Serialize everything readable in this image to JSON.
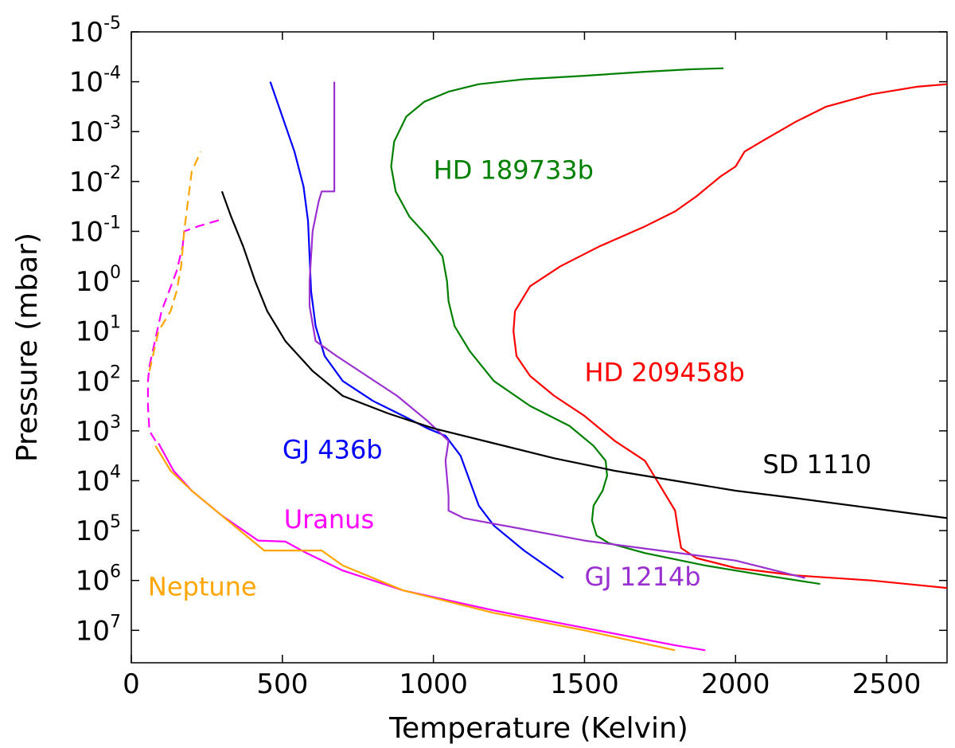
{
  "chart_data": {
    "type": "line",
    "xlabel": "Temperature (Kelvin)",
    "ylabel": "Pressure (mbar)",
    "xlim": [
      0,
      2700
    ],
    "ylim_log10": [
      -5,
      7.65
    ],
    "y_inverted": true,
    "grid": false,
    "x_ticks": [
      {
        "value": 0,
        "label": "0"
      },
      {
        "value": 500,
        "label": "500"
      },
      {
        "value": 1000,
        "label": "1000"
      },
      {
        "value": 1500,
        "label": "1500"
      },
      {
        "value": 2000,
        "label": "2000"
      },
      {
        "value": 2500,
        "label": "2500"
      }
    ],
    "y_ticks": [
      {
        "exp": -5,
        "base": "10",
        "sup": "-5"
      },
      {
        "exp": -4,
        "base": "10",
        "sup": "-4"
      },
      {
        "exp": -3,
        "base": "10",
        "sup": "-3"
      },
      {
        "exp": -2,
        "base": "10",
        "sup": "-2"
      },
      {
        "exp": -1,
        "base": "10",
        "sup": "-1"
      },
      {
        "exp": 0,
        "base": "10",
        "sup": "0"
      },
      {
        "exp": 1,
        "base": "10",
        "sup": "1"
      },
      {
        "exp": 2,
        "base": "10",
        "sup": "2"
      },
      {
        "exp": 3,
        "base": "10",
        "sup": "3"
      },
      {
        "exp": 4,
        "base": "10",
        "sup": "4"
      },
      {
        "exp": 5,
        "base": "10",
        "sup": "5"
      },
      {
        "exp": 6,
        "base": "10",
        "sup": "6"
      },
      {
        "exp": 7,
        "base": "10",
        "sup": "7"
      }
    ],
    "series": [
      {
        "id": "hd189733b",
        "name": "HD 189733b",
        "color": "#008000",
        "label_at": {
          "t": 1000,
          "logp": -2.05
        },
        "points": [
          [
            1960,
            -4.27
          ],
          [
            1850,
            -4.25
          ],
          [
            1700,
            -4.2
          ],
          [
            1500,
            -4.12
          ],
          [
            1300,
            -4.05
          ],
          [
            1150,
            -3.95
          ],
          [
            1050,
            -3.8
          ],
          [
            970,
            -3.6
          ],
          [
            910,
            -3.3
          ],
          [
            870,
            -2.8
          ],
          [
            860,
            -2.3
          ],
          [
            875,
            -1.8
          ],
          [
            920,
            -1.3
          ],
          [
            980,
            -0.9
          ],
          [
            1030,
            -0.5
          ],
          [
            1045,
            0
          ],
          [
            1050,
            0.4
          ],
          [
            1070,
            0.9
          ],
          [
            1120,
            1.4
          ],
          [
            1200,
            2.0
          ],
          [
            1320,
            2.5
          ],
          [
            1450,
            2.9
          ],
          [
            1530,
            3.3
          ],
          [
            1570,
            3.6
          ],
          [
            1575,
            3.9
          ],
          [
            1560,
            4.2
          ],
          [
            1530,
            4.5
          ],
          [
            1525,
            4.8
          ],
          [
            1540,
            5.1
          ],
          [
            1580,
            5.25
          ],
          [
            1700,
            5.45
          ],
          [
            1900,
            5.7
          ],
          [
            2100,
            5.9
          ],
          [
            2280,
            6.07
          ]
        ]
      },
      {
        "id": "hd209458b",
        "name": "HD 209458b",
        "color": "#ff0000",
        "label_at": {
          "t": 1500,
          "logp": 2.0
        },
        "points": [
          [
            2700,
            -3.95
          ],
          [
            2600,
            -3.9
          ],
          [
            2450,
            -3.75
          ],
          [
            2300,
            -3.5
          ],
          [
            2200,
            -3.2
          ],
          [
            2100,
            -2.85
          ],
          [
            2030,
            -2.6
          ],
          [
            2000,
            -2.3
          ],
          [
            1950,
            -2.1
          ],
          [
            1870,
            -1.7
          ],
          [
            1800,
            -1.4
          ],
          [
            1700,
            -1.1
          ],
          [
            1550,
            -0.7
          ],
          [
            1420,
            -0.3
          ],
          [
            1320,
            0.1
          ],
          [
            1270,
            0.6
          ],
          [
            1265,
            1.0
          ],
          [
            1275,
            1.5
          ],
          [
            1320,
            1.9
          ],
          [
            1400,
            2.3
          ],
          [
            1500,
            2.7
          ],
          [
            1600,
            3.2
          ],
          [
            1700,
            3.6
          ],
          [
            1750,
            4.1
          ],
          [
            1800,
            4.6
          ],
          [
            1810,
            5.0
          ],
          [
            1820,
            5.35
          ],
          [
            1870,
            5.55
          ],
          [
            2000,
            5.75
          ],
          [
            2200,
            5.9
          ],
          [
            2450,
            6.0
          ],
          [
            2700,
            6.15
          ]
        ]
      },
      {
        "id": "gj436b",
        "name": "GJ 436b",
        "color": "#0000ff",
        "label_at": {
          "t": 500,
          "logp": 3.55
        },
        "points": [
          [
            460,
            -4.0
          ],
          [
            500,
            -3.3
          ],
          [
            540,
            -2.6
          ],
          [
            570,
            -1.9
          ],
          [
            585,
            -1.2
          ],
          [
            590,
            -0.5
          ],
          [
            595,
            0.2
          ],
          [
            610,
            0.9
          ],
          [
            640,
            1.5
          ],
          [
            700,
            2.0
          ],
          [
            800,
            2.4
          ],
          [
            900,
            2.7
          ],
          [
            980,
            2.95
          ],
          [
            1040,
            3.1
          ],
          [
            1090,
            3.5
          ],
          [
            1120,
            4.0
          ],
          [
            1150,
            4.5
          ],
          [
            1200,
            4.9
          ],
          [
            1300,
            5.4
          ],
          [
            1430,
            5.95
          ]
        ]
      },
      {
        "id": "gj1214b",
        "name": "GJ 1214b",
        "color": "#9b30d0",
        "label_at": {
          "t": 1500,
          "logp": 6.1
        },
        "points": [
          [
            672,
            -4.0
          ],
          [
            672,
            -1.8
          ],
          [
            630,
            -1.8
          ],
          [
            620,
            -1.6
          ],
          [
            600,
            -1.0
          ],
          [
            590,
            0
          ],
          [
            590,
            0.5
          ],
          [
            610,
            1.2
          ],
          [
            680,
            1.5
          ],
          [
            780,
            1.9
          ],
          [
            880,
            2.3
          ],
          [
            980,
            2.8
          ],
          [
            1050,
            3.2
          ],
          [
            1040,
            3.6
          ],
          [
            1050,
            4.3
          ],
          [
            1050,
            4.6
          ],
          [
            1100,
            4.75
          ],
          [
            1500,
            5.2
          ],
          [
            2000,
            5.6
          ],
          [
            2230,
            5.95
          ]
        ]
      },
      {
        "id": "sd1110",
        "name": "SD 1110",
        "color": "#000000",
        "label_at": {
          "t": 2090,
          "logp": 3.85
        },
        "points": [
          [
            300,
            -1.8
          ],
          [
            330,
            -1.3
          ],
          [
            370,
            -0.7
          ],
          [
            410,
            0
          ],
          [
            450,
            0.6
          ],
          [
            510,
            1.2
          ],
          [
            600,
            1.8
          ],
          [
            700,
            2.3
          ],
          [
            850,
            2.65
          ],
          [
            1000,
            2.95
          ],
          [
            1200,
            3.25
          ],
          [
            1400,
            3.55
          ],
          [
            1600,
            3.8
          ],
          [
            1800,
            4.0
          ],
          [
            2000,
            4.2
          ],
          [
            2200,
            4.35
          ],
          [
            2450,
            4.55
          ],
          [
            2700,
            4.75
          ]
        ]
      },
      {
        "id": "uranus",
        "name": "Uranus",
        "color": "#ff00ff",
        "label_at": {
          "t": 505,
          "logp": 4.95
        },
        "points": [
          [
            90,
            3.25
          ],
          [
            140,
            3.8
          ],
          [
            200,
            4.2
          ],
          [
            300,
            4.7
          ],
          [
            420,
            5.2
          ],
          [
            510,
            5.22
          ],
          [
            580,
            5.45
          ],
          [
            700,
            5.8
          ],
          [
            900,
            6.2
          ],
          [
            1200,
            6.6
          ],
          [
            1500,
            6.95
          ],
          [
            1800,
            7.3
          ],
          [
            1900,
            7.4
          ]
        ],
        "dashed": [
          [
            60,
            1.7
          ],
          [
            100,
            0.6
          ],
          [
            150,
            -0.2
          ],
          [
            170,
            -0.7
          ],
          [
            175,
            -1.0
          ],
          [
            220,
            -1.1
          ],
          [
            305,
            -1.25
          ]
        ]
      },
      {
        "id": "neptune",
        "name": "Neptune",
        "color": "#ffa500",
        "label_at": {
          "t": 55,
          "logp": 6.3
        },
        "points": [
          [
            80,
            3.3
          ],
          [
            130,
            3.8
          ],
          [
            200,
            4.2
          ],
          [
            320,
            4.8
          ],
          [
            440,
            5.4
          ],
          [
            630,
            5.4
          ],
          [
            700,
            5.7
          ],
          [
            900,
            6.2
          ],
          [
            1200,
            6.65
          ],
          [
            1500,
            7.0
          ],
          [
            1800,
            7.4
          ]
        ],
        "dashed": [
          [
            60,
            1.8
          ],
          [
            90,
            1.0
          ],
          [
            130,
            0.6
          ],
          [
            150,
            0.2
          ],
          [
            165,
            -0.3
          ],
          [
            175,
            -1.0
          ],
          [
            200,
            -2.2
          ],
          [
            230,
            -2.6
          ]
        ]
      },
      {
        "id": "icegiant-deep",
        "name": "",
        "color": "#ff00ff",
        "dashed": [
          [
            80,
            3.2
          ],
          [
            60,
            3.0
          ],
          [
            55,
            2.5
          ],
          [
            55,
            2.0
          ],
          [
            60,
            1.7
          ]
        ]
      }
    ]
  }
}
